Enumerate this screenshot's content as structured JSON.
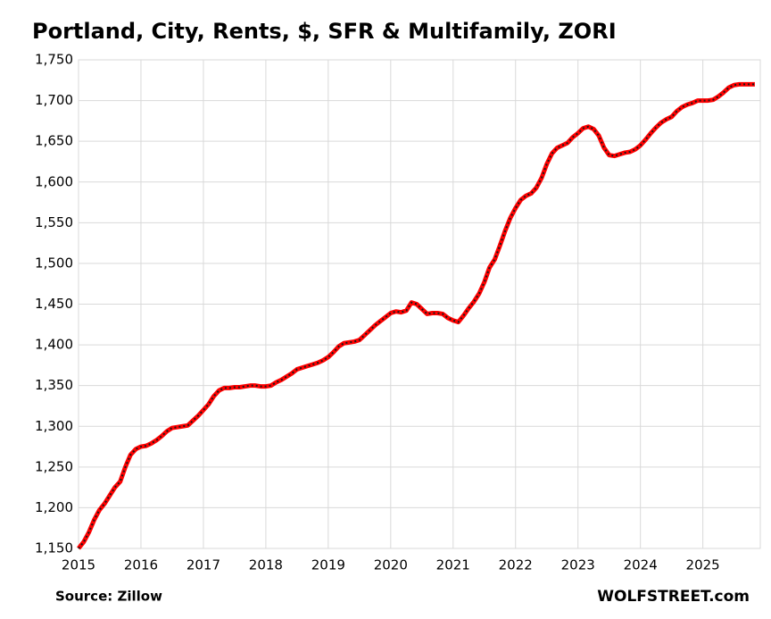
{
  "chart_data": {
    "type": "line",
    "title": "Portland, City, Rents, $, SFR & Multifamily, ZORI",
    "source": "Source: Zillow",
    "watermark": "WOLFSTREET.com",
    "x": [
      2015,
      2015.083,
      2015.167,
      2015.25,
      2015.333,
      2015.417,
      2015.5,
      2015.583,
      2015.667,
      2015.75,
      2015.833,
      2015.917,
      2016,
      2016.083,
      2016.167,
      2016.25,
      2016.333,
      2016.417,
      2016.5,
      2016.583,
      2016.667,
      2016.75,
      2016.833,
      2016.917,
      2017,
      2017.083,
      2017.167,
      2017.25,
      2017.333,
      2017.417,
      2017.5,
      2017.583,
      2017.667,
      2017.75,
      2017.833,
      2017.917,
      2018,
      2018.083,
      2018.167,
      2018.25,
      2018.333,
      2018.417,
      2018.5,
      2018.583,
      2018.667,
      2018.75,
      2018.833,
      2018.917,
      2019,
      2019.083,
      2019.167,
      2019.25,
      2019.333,
      2019.417,
      2019.5,
      2019.583,
      2019.667,
      2019.75,
      2019.833,
      2019.917,
      2020,
      2020.083,
      2020.167,
      2020.25,
      2020.333,
      2020.417,
      2020.5,
      2020.583,
      2020.667,
      2020.75,
      2020.833,
      2020.917,
      2021,
      2021.083,
      2021.167,
      2021.25,
      2021.333,
      2021.417,
      2021.5,
      2021.583,
      2021.667,
      2021.75,
      2021.833,
      2021.917,
      2022,
      2022.083,
      2022.167,
      2022.25,
      2022.333,
      2022.417,
      2022.5,
      2022.583,
      2022.667,
      2022.75,
      2022.833,
      2022.917,
      2023,
      2023.083,
      2023.167,
      2023.25,
      2023.333,
      2023.417,
      2023.5,
      2023.583,
      2023.667,
      2023.75,
      2023.833,
      2023.917,
      2024,
      2024.083,
      2024.167,
      2024.25,
      2024.333,
      2024.417,
      2024.5,
      2024.583,
      2024.667,
      2024.75,
      2024.833,
      2024.917,
      2025,
      2025.083,
      2025.167,
      2025.25,
      2025.333,
      2025.417,
      2025.5,
      2025.583,
      2025.667,
      2025.75,
      2025.833
    ],
    "series": [
      {
        "color": "#ff0000",
        "dot_color": "#1a1a1a",
        "values": [
          1150,
          1158,
          1170,
          1185,
          1197,
          1205,
          1215,
          1225,
          1232,
          1250,
          1265,
          1272,
          1275,
          1276,
          1279,
          1283,
          1288,
          1294,
          1298,
          1299,
          1300,
          1301,
          1307,
          1313,
          1320,
          1327,
          1337,
          1344,
          1347,
          1347,
          1348,
          1348,
          1349,
          1350,
          1350,
          1349,
          1349,
          1350,
          1354,
          1357,
          1361,
          1365,
          1370,
          1372,
          1374,
          1376,
          1378,
          1381,
          1385,
          1391,
          1398,
          1402,
          1403,
          1404,
          1406,
          1412,
          1418,
          1424,
          1429,
          1434,
          1439,
          1441,
          1440,
          1442,
          1452,
          1450,
          1444,
          1438,
          1439,
          1439,
          1438,
          1433,
          1430,
          1428,
          1436,
          1445,
          1453,
          1463,
          1477,
          1495,
          1505,
          1522,
          1540,
          1556,
          1568,
          1578,
          1583,
          1586,
          1593,
          1605,
          1622,
          1635,
          1642,
          1645,
          1648,
          1655,
          1660,
          1666,
          1668,
          1665,
          1657,
          1642,
          1633,
          1632,
          1634,
          1636,
          1637,
          1640,
          1645,
          1652,
          1660,
          1667,
          1673,
          1677,
          1680,
          1687,
          1692,
          1695,
          1697,
          1700,
          1700,
          1700,
          1701,
          1705,
          1710,
          1716,
          1719,
          1720,
          1720,
          1720,
          1720
        ]
      }
    ],
    "xlim": [
      2015,
      2025.92
    ],
    "xticks": [
      2015,
      2016,
      2017,
      2018,
      2019,
      2020,
      2021,
      2022,
      2023,
      2024,
      2025
    ],
    "ylim": [
      1150,
      1750
    ],
    "yticks": [
      {
        "value": 1150,
        "label": "1,150"
      },
      {
        "value": 1200,
        "label": "1,200"
      },
      {
        "value": 1250,
        "label": "1,250"
      },
      {
        "value": 1300,
        "label": "1,300"
      },
      {
        "value": 1350,
        "label": "1,350"
      },
      {
        "value": 1400,
        "label": "1,400"
      },
      {
        "value": 1450,
        "label": "1,450"
      },
      {
        "value": 1500,
        "label": "1,500"
      },
      {
        "value": 1550,
        "label": "1,550"
      },
      {
        "value": 1600,
        "label": "1,600"
      },
      {
        "value": 1650,
        "label": "1,650"
      },
      {
        "value": 1700,
        "label": "1,700"
      },
      {
        "value": 1750,
        "label": "1,750"
      }
    ],
    "grid": true
  }
}
